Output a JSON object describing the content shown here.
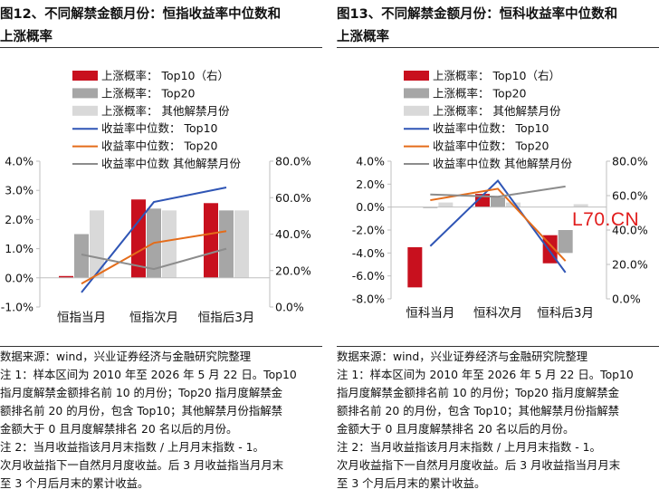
{
  "panels": [
    {
      "title_line1": "图12、不同解禁金额月份：恒指收益率中位数和",
      "title_line2": "上涨概率",
      "notes": [
        "数据来源：wind，兴业证券经济与金融研究院整理",
        "注 1：样本区间为 2010 年至 2026 年 5 月 22 日。Top10",
        "指月度解禁金额排名前 10 的月份；Top20 指月度解禁金",
        "额排名前 20 的月份，包含 Top10；其他解禁月份指解禁",
        "金额大于 0 且月度解禁排名 20 名以后的月份。",
        "注 2：当月收益指该月月末指数 / 上月月末指数 - 1。",
        "次月收益指下一自然月月度收益。后 3 月收益指当月月末",
        "至 3 个月后月末的累计收益。"
      ]
    },
    {
      "title_line1": "图13、不同解禁金额月份：恒科收益率中位数和",
      "title_line2": "上涨概率",
      "notes": [
        "数据来源：wind，兴业证券经济与金融研究院整理",
        "注 1：样本区间为 2010 年至 2026 年 5 月 22 日。Top10",
        "指月度解禁金额排名前 10 的月份；Top20 指月度解禁金",
        "额排名前 20 的月份，包含 Top10；其他解禁月份指解禁",
        "金额大于 0 且月度解禁排名 20 名以后的月份。",
        "注 2：当月收益指该月月末指数 / 上月月末指数 - 1。",
        "次月收益指下一自然月月度收益。后 3 月收益指当月月末",
        "至 3 个月后月末的累计收益。"
      ]
    }
  ],
  "watermark": "L70.CN",
  "chart_data": [
    {
      "type": "bar",
      "categories": [
        "恒指当月",
        "恒指次月",
        "恒指后3月"
      ],
      "y_left": {
        "min": -0.01,
        "max": 0.04,
        "step": 0.01,
        "ticks": [
          "-1.0%",
          "0.0%",
          "1.0%",
          "2.0%",
          "3.0%",
          "4.0%"
        ]
      },
      "y_right": {
        "min": 0,
        "max": 80,
        "step": 20,
        "ticks": [
          "0.0%",
          "20.0%",
          "40.0%",
          "60.0%",
          "80.0%"
        ]
      },
      "bar_series": [
        {
          "name": "上涨概率：  Top10（右）",
          "color": "#c8101e",
          "values": [
            17,
            59,
            57
          ]
        },
        {
          "name": "上涨概率：  Top20",
          "color": "#a6a6a6",
          "values": [
            40,
            54,
            53
          ]
        },
        {
          "name": "上涨概率：  其他解禁月份",
          "color": "#d9d9d9",
          "values": [
            53,
            53,
            53
          ]
        }
      ],
      "line_series": [
        {
          "name": "收益率中位数：  Top10",
          "color": "#2f55b5",
          "values": [
            -0.005,
            0.026,
            0.031
          ]
        },
        {
          "name": "收益率中位数：  Top20",
          "color": "#e46c1a",
          "values": [
            -0.002,
            0.012,
            0.016
          ]
        },
        {
          "name": "收益率中位数 其他解禁月份",
          "color": "#8c8c8c",
          "values": [
            0.008,
            0.003,
            0.01
          ]
        }
      ]
    },
    {
      "type": "bar",
      "categories": [
        "恒科当月",
        "恒科次月",
        "恒科后3月"
      ],
      "y_left": {
        "min": -0.08,
        "max": 0.04,
        "step": 0.02,
        "ticks": [
          "-8.0%",
          "-6.0%",
          "-4.0%",
          "-2.0%",
          "0.0%",
          "2.0%",
          "4.0%"
        ]
      },
      "y_right": {
        "min": 0,
        "max": 80,
        "step": 20,
        "ticks": [
          "0.0%",
          "20.0%",
          "40.0%",
          "60.0%",
          "80.0%"
        ]
      },
      "bar_series": [
        {
          "name": "上涨概率：  Top10（右）",
          "color": "#c8101e",
          "values": [
            30,
            61,
            37
          ]
        },
        {
          "name": "上涨概率：  Top20",
          "color": "#a6a6a6",
          "values": [
            53,
            59,
            40
          ]
        },
        {
          "name": "上涨概率：  其他解禁月份",
          "color": "#d9d9d9",
          "values": [
            56,
            56,
            55
          ]
        }
      ],
      "line_series": [
        {
          "name": "收益率中位数：  Top10",
          "color": "#2f55b5",
          "values": [
            -0.034,
            0.023,
            -0.057
          ]
        },
        {
          "name": "收益率中位数：  Top20",
          "color": "#e46c1a",
          "values": [
            0.006,
            0.016,
            -0.047
          ]
        },
        {
          "name": "收益率中位数 其他解禁月份",
          "color": "#8c8c8c",
          "values": [
            0.011,
            0.009,
            0.018
          ]
        }
      ]
    }
  ]
}
